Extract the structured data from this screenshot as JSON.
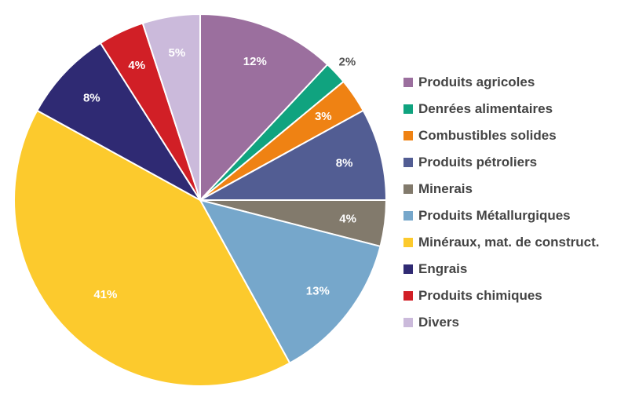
{
  "chart_data": {
    "type": "pie",
    "title": "",
    "categories": [
      "Produits agricoles",
      "Denrées alimentaires",
      "Combustibles solides",
      "Produits pétroliers",
      "Minerais",
      "Produits Métallurgiques",
      "Minéraux, mat. de construct.",
      "Engrais",
      "Produits chimiques",
      "Divers"
    ],
    "values": [
      12,
      2,
      3,
      8,
      4,
      13,
      41,
      8,
      4,
      5
    ],
    "labels": [
      "12%",
      "2%",
      "3%",
      "8%",
      "4%",
      "13%",
      "41%",
      "8%",
      "4%",
      "5%"
    ],
    "colors": [
      "#9b6f9e",
      "#10a37f",
      "#ef8213",
      "#525d93",
      "#827a6c",
      "#76a7cb",
      "#fcca2d",
      "#2f2a73",
      "#d11f26",
      "#cbbadb"
    ],
    "label_colors": [
      "#ffffff",
      "#555555",
      "#ffffff",
      "#ffffff",
      "#ffffff",
      "#ffffff",
      "#ffffff",
      "#ffffff",
      "#ffffff",
      "#ffffff"
    ],
    "start_angle_deg": 0,
    "direction": "clockwise",
    "legend_position": "right"
  }
}
